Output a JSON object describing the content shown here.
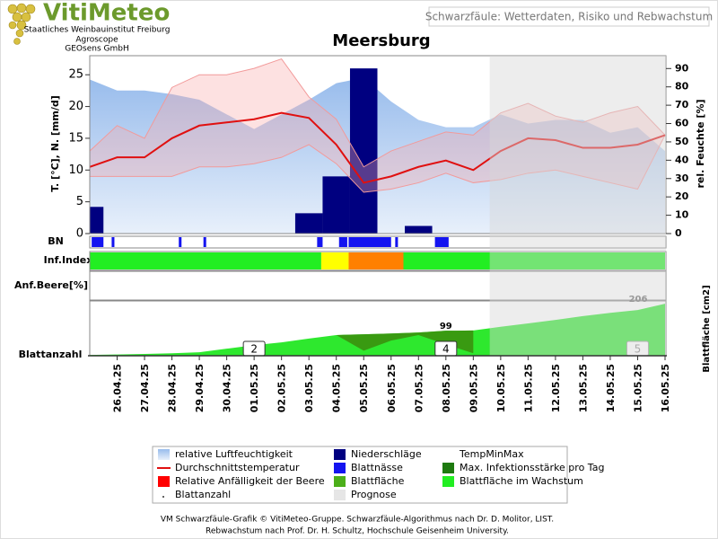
{
  "header": {
    "logo": "VitiMeteo",
    "institutions": [
      "Staatliches Weinbauinstitut Freiburg",
      "Agroscope",
      "GEOsens GmbH"
    ],
    "subtitle": "Schwarzfäule: Wetterdaten, Risiko und Rebwachstum"
  },
  "chart_data": {
    "type": "line",
    "title": "Meersburg",
    "ylabel": "T. [°C], N. [mm/d]",
    "y2label": "rel. Feuchte [%]",
    "x": [
      0,
      1,
      2,
      3,
      4,
      5,
      6,
      7,
      8,
      9,
      10,
      11,
      12,
      13,
      14,
      15,
      16,
      17,
      18,
      19,
      20,
      21
    ],
    "xlim": [
      0,
      21
    ],
    "xticks": [
      {
        "value": 1,
        "label": "26.04.25"
      },
      {
        "value": 2,
        "label": "27.04.25"
      },
      {
        "value": 3,
        "label": "28.04.25"
      },
      {
        "value": 4,
        "label": "29.04.25"
      },
      {
        "value": 5,
        "label": "30.04.25"
      },
      {
        "value": 6,
        "label": "01.05.25"
      },
      {
        "value": 7,
        "label": "02.05.25"
      },
      {
        "value": 8,
        "label": "03.05.25"
      },
      {
        "value": 9,
        "label": "04.05.25"
      },
      {
        "value": 10,
        "label": "05.05.25"
      },
      {
        "value": 11,
        "label": "06.05.25"
      },
      {
        "value": 12,
        "label": "07.05.25"
      },
      {
        "value": 13,
        "label": "08.05.25"
      },
      {
        "value": 14,
        "label": "09.05.25"
      },
      {
        "value": 15,
        "label": "10.05.25"
      },
      {
        "value": 16,
        "label": "11.05.25"
      },
      {
        "value": 17,
        "label": "12.05.25"
      },
      {
        "value": 18,
        "label": "13.05.25"
      },
      {
        "value": 19,
        "label": "14.05.25"
      },
      {
        "value": 20,
        "label": "15.05.25"
      },
      {
        "value": 21,
        "label": "16.05.25"
      }
    ],
    "ylim": [
      0,
      28
    ],
    "yticks": [
      0,
      5,
      10,
      15,
      20,
      25
    ],
    "y2lim": [
      0,
      97
    ],
    "y2ticks": [
      0,
      10,
      20,
      30,
      40,
      50,
      60,
      70,
      80,
      90
    ],
    "forecast_start": 14.6,
    "series": [
      {
        "kind": "area",
        "axis": "y2",
        "color": "#a6c6ee",
        "values": [
          84,
          78,
          78,
          76,
          73,
          65,
          57,
          65,
          73,
          82,
          85,
          72,
          62,
          58,
          58,
          65,
          60,
          62,
          62,
          55,
          58,
          45
        ]
      },
      {
        "kind": "bar",
        "color": "#000080",
        "values": [
          4.2,
          0,
          0,
          0,
          0,
          0,
          0,
          0,
          3.2,
          9,
          26,
          0,
          1.2,
          0,
          0,
          0,
          0,
          0,
          0,
          0,
          0,
          0
        ]
      },
      {
        "kind": "band",
        "color": "#f29a9a",
        "values": [
          13,
          17,
          15,
          23,
          25,
          25,
          26,
          27.5,
          21.5,
          18,
          10.5,
          13,
          14.5,
          16,
          15.5,
          19,
          20.5,
          18.5,
          17.5,
          19,
          20,
          15.5
        ],
        "min": [
          9,
          9,
          9,
          9,
          10.5,
          10.5,
          11,
          12,
          14,
          11,
          6.5,
          7,
          8,
          9.5,
          8,
          8.5,
          9.5,
          10,
          9,
          8,
          7,
          15.5
        ]
      },
      {
        "kind": "line",
        "color": "#e01010",
        "values": [
          10.5,
          12,
          12,
          15,
          17,
          17.5,
          18,
          19,
          18.2,
          14,
          8,
          9,
          10.5,
          11.5,
          10,
          13,
          15,
          14.7,
          13.5,
          13.5,
          14,
          15.5
        ]
      }
    ],
    "rows": {
      "leaf_wetness": {
        "label": "BN",
        "color": "#1414f0",
        "intervals": [
          [
            0.07,
            0.5
          ],
          [
            0.8,
            0.9
          ],
          [
            3.25,
            3.35
          ],
          [
            4.15,
            4.25
          ],
          [
            8.3,
            8.5
          ],
          [
            9.1,
            9.4
          ],
          [
            9.45,
            11.0
          ],
          [
            11.15,
            11.25
          ],
          [
            12.6,
            13.1
          ]
        ]
      },
      "infection_index": {
        "label": "Inf.Index",
        "segments": [
          {
            "start": 0,
            "end": 8.45,
            "color": "#22ee22"
          },
          {
            "start": 8.45,
            "end": 9.45,
            "color": "#ffff00"
          },
          {
            "start": 9.45,
            "end": 11.45,
            "color": "#ff8000"
          },
          {
            "start": 11.45,
            "end": 21,
            "color": "#22ee22"
          }
        ]
      },
      "berry": {
        "label": "Anf.Beere[%]"
      }
    },
    "leaf_panel": {
      "label": "Blattanzahl",
      "ylabel": "Blattfläche [cm2]",
      "ylim": [
        0,
        210
      ],
      "leaf_area": {
        "color": "#2ee82e",
        "values": [
          3,
          5,
          7,
          10,
          14,
          28,
          42,
          53,
          68,
          82,
          85,
          88,
          92,
          99,
          100,
          115,
          128,
          142,
          157,
          170,
          181,
          206
        ],
        "labeled": [
          13,
          21
        ]
      },
      "infection": {
        "color": "#3b8c0c",
        "values": [
          null,
          null,
          null,
          null,
          null,
          null,
          null,
          null,
          null,
          82,
          20,
          60,
          82,
          45,
          10,
          null,
          null,
          null,
          null,
          null,
          null,
          null
        ]
      },
      "leaf_count": {
        "x": [
          6,
          13,
          20
        ],
        "values": [
          2,
          4,
          5
        ]
      }
    },
    "legend": [
      {
        "name": "relative Luftfeuchtigkeit",
        "symbol": "gradient"
      },
      {
        "name": "Durchschnittstemperatur",
        "symbol": "line",
        "color": "#e01010"
      },
      {
        "name": "Relative Anfälligkeit der Beere",
        "symbol": "square",
        "color": "#ff0000"
      },
      {
        "name": "Blattanzahl",
        "symbol": "dot",
        "color": "#333333"
      },
      {
        "name": "Niederschläge",
        "symbol": "square",
        "color": "#000080"
      },
      {
        "name": "Blattnässe",
        "symbol": "square",
        "color": "#1414f0"
      },
      {
        "name": "Blattfläche",
        "symbol": "square",
        "color": "#4caf1a"
      },
      {
        "name": "Prognose",
        "symbol": "square",
        "color": "#e6e6e6"
      },
      {
        "name": "TempMinMax",
        "symbol": "none"
      },
      {
        "name": "Max. Infektionsstärke pro Tag",
        "symbol": "square",
        "color": "#1e7a10"
      },
      {
        "name": "Blattfläche im Wachstum",
        "symbol": "square",
        "color": "#22ee22"
      }
    ]
  },
  "footer": [
    "VM Schwarzfäule-Grafik © VitiMeteo-Gruppe. Schwarzfäule-Algorithmus nach Dr. D. Molitor, LIST.",
    "Rebwachstum nach Prof. Dr. H. Schultz, Hochschule Geisenheim University."
  ]
}
